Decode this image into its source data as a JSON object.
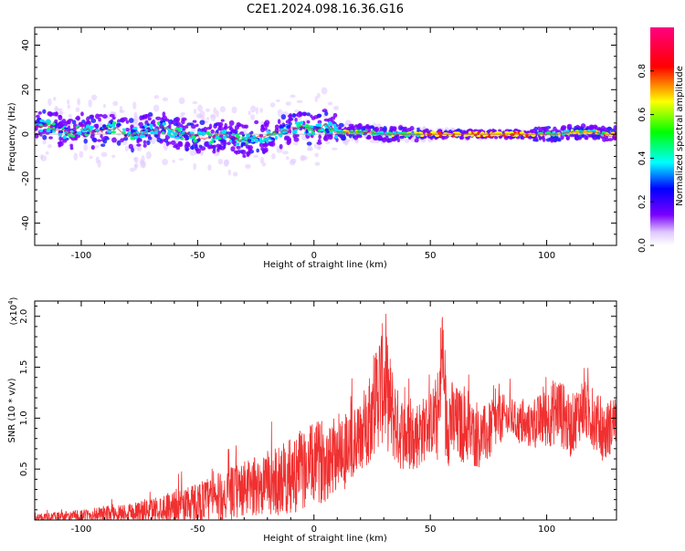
{
  "title": "C2E1.2024.098.16.36.G16",
  "chart_data": [
    {
      "type": "heatmap",
      "xlabel": "Height of straight line (km)",
      "ylabel": "Frequency (Hz)",
      "xlim": [
        -120,
        130
      ],
      "ylim": [
        -50,
        48
      ],
      "x_ticks": [
        -100,
        -50,
        0,
        50,
        100
      ],
      "y_ticks": [
        -40,
        -20,
        0,
        20,
        40
      ],
      "grid": false,
      "signal_trace": {
        "x": [
          -120,
          -115,
          -110,
          -105,
          -100,
          -95,
          -90,
          -85,
          -80,
          -75,
          -70,
          -65,
          -60,
          -55,
          -50,
          -45,
          -40,
          -35,
          -30,
          -25,
          -20,
          -15,
          -10,
          -5,
          0,
          5,
          10,
          20,
          30,
          40,
          50,
          60,
          70,
          80,
          90,
          100,
          105,
          110,
          115,
          120,
          125,
          130
        ],
        "y": [
          3,
          4,
          2,
          0,
          3,
          1,
          2,
          3,
          -1,
          1,
          2,
          3,
          1,
          0,
          -1,
          -2,
          0,
          -2,
          -3,
          -1,
          -1,
          1,
          2,
          3,
          2,
          4,
          1,
          1,
          0,
          0,
          0,
          0,
          0,
          0,
          0,
          0,
          0,
          1,
          1,
          1,
          0,
          0
        ]
      },
      "colorbar": {
        "label": "Normalized spectral amplitude",
        "range": [
          0,
          1
        ],
        "ticks": [
          "0.0",
          "0.2",
          "0.4",
          "0.6",
          "0.8"
        ],
        "colors": [
          "#ffffff",
          "#7a00ff",
          "#0000ff",
          "#00ffff",
          "#00ff00",
          "#ffff00",
          "#ff0000",
          "#ff0080"
        ]
      }
    },
    {
      "type": "line",
      "xlabel": "Height of straight line (km)",
      "ylabel": "SNR (10 * v/v)",
      "y_multiplier": "(x10",
      "y_multiplier_exp": "4",
      "y_multiplier_close": ")",
      "xlim": [
        -120,
        130
      ],
      "ylim": [
        0,
        2.15
      ],
      "x_ticks": [
        -100,
        -50,
        0,
        50,
        100
      ],
      "y_ticks": [
        "0.5",
        "1.0",
        "1.5",
        "2.0"
      ],
      "color": "#f03030",
      "envelope": {
        "x": [
          -120,
          -110,
          -100,
          -90,
          -80,
          -70,
          -60,
          -50,
          -40,
          -30,
          -20,
          -10,
          -5,
          0,
          5,
          10,
          15,
          20,
          25,
          28,
          30,
          33,
          36,
          40,
          45,
          50,
          55,
          60,
          65,
          70,
          75,
          80,
          85,
          90,
          95,
          100,
          105,
          110,
          115,
          120,
          125,
          130
        ],
        "base": [
          0.02,
          0.03,
          0.04,
          0.06,
          0.08,
          0.1,
          0.14,
          0.18,
          0.22,
          0.3,
          0.36,
          0.42,
          0.5,
          0.55,
          0.6,
          0.68,
          0.7,
          0.8,
          1.1,
          1.3,
          1.35,
          1.1,
          0.9,
          0.8,
          0.85,
          0.95,
          1.05,
          0.95,
          0.9,
          0.8,
          0.85,
          1.0,
          1.0,
          0.9,
          0.95,
          1.0,
          1.1,
          0.9,
          1.1,
          1.0,
          0.85,
          1.0
        ],
        "spread": [
          0.04,
          0.05,
          0.06,
          0.08,
          0.09,
          0.12,
          0.16,
          0.2,
          0.25,
          0.28,
          0.32,
          0.38,
          0.4,
          0.4,
          0.42,
          0.4,
          0.4,
          0.35,
          0.5,
          0.6,
          0.6,
          0.5,
          0.4,
          0.35,
          0.35,
          0.3,
          0.55,
          0.4,
          0.35,
          0.3,
          0.3,
          0.25,
          0.2,
          0.2,
          0.25,
          0.3,
          0.35,
          0.3,
          0.3,
          0.3,
          0.3,
          0.25
        ]
      }
    }
  ]
}
